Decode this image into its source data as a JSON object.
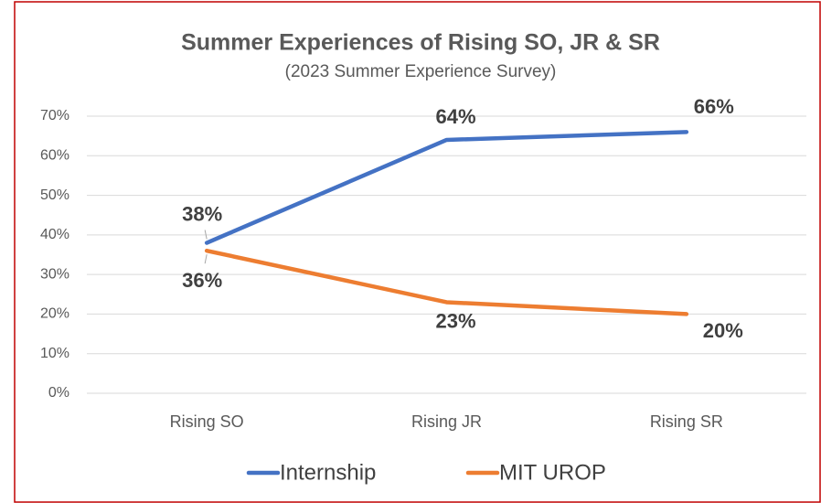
{
  "chart_data": {
    "type": "line",
    "title": "Summer Experiences of Rising SO, JR & SR",
    "subtitle": "(2023 Summer Experience Survey)",
    "categories": [
      "Rising SO",
      "Rising JR",
      "Rising SR"
    ],
    "series": [
      {
        "name": "Internship",
        "color": "#4472c4",
        "values": [
          38,
          64,
          66
        ],
        "value_labels": [
          "38%",
          "64%",
          "66%"
        ]
      },
      {
        "name": "MIT UROP",
        "color": "#ed7d31",
        "values": [
          36,
          23,
          20
        ],
        "value_labels": [
          "36%",
          "23%",
          "20%"
        ]
      }
    ],
    "ylim": [
      0,
      70
    ],
    "yticks": [
      {
        "value": 0,
        "label": "0%"
      },
      {
        "value": 10,
        "label": "10%"
      },
      {
        "value": 20,
        "label": "20%"
      },
      {
        "value": 30,
        "label": "30%"
      },
      {
        "value": 40,
        "label": "40%"
      },
      {
        "value": 50,
        "label": "50%"
      },
      {
        "value": 60,
        "label": "60%"
      },
      {
        "value": 70,
        "label": "70%"
      }
    ],
    "grid": true,
    "legend": "bottom"
  }
}
